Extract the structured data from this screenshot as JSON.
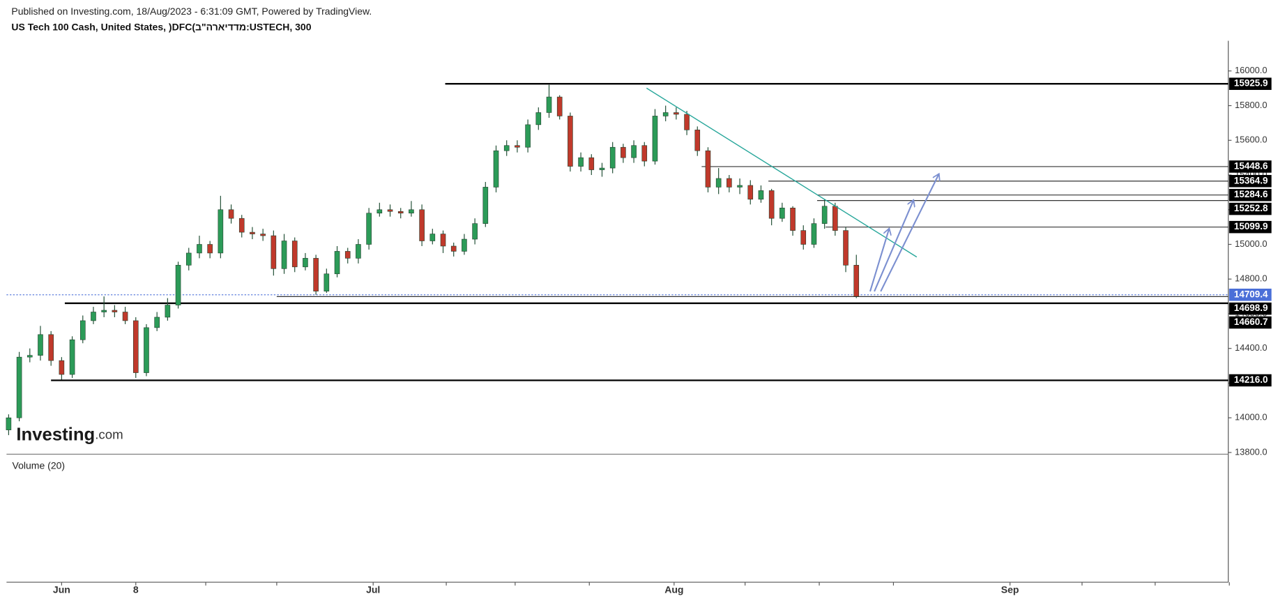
{
  "chart_data": {
    "type": "candlestick",
    "published": "Published on Investing.com, 18/Aug/2023 - 6:31:09 GMT, Powered by TradingView.",
    "title": "US Tech 100 Cash, United States, )DFC(מדדיארה\"ב:USTECH, 300",
    "volume_label": "Volume (20)",
    "logo": {
      "main": "Investing",
      "suffix": ".com"
    },
    "up_color": "#2c9b58",
    "down_color": "#c0392b",
    "x": [
      0,
      1,
      2,
      3,
      4,
      5,
      6,
      7,
      8,
      9,
      10,
      11,
      12,
      13,
      14,
      15,
      16,
      17,
      18,
      19,
      20,
      21,
      22,
      23,
      24,
      25,
      26,
      27,
      28,
      29,
      30,
      31,
      32,
      33,
      34,
      35,
      36,
      37,
      38,
      39,
      40,
      41,
      42,
      43,
      44,
      45,
      46,
      47,
      48,
      49,
      50,
      51,
      52,
      53,
      54,
      55,
      56,
      57,
      58,
      59,
      60,
      61,
      62,
      63,
      64,
      65,
      66,
      67,
      68,
      69,
      70,
      71,
      72,
      73,
      74,
      75,
      76,
      77,
      78,
      79,
      80
    ],
    "open": [
      13930,
      14000,
      14350,
      14360,
      14480,
      14330,
      14250,
      14450,
      14560,
      14610,
      14620,
      14610,
      14560,
      14260,
      14520,
      14580,
      14650,
      14880,
      14950,
      15000,
      14950,
      15200,
      15150,
      15070,
      15060,
      15050,
      14860,
      15020,
      14870,
      14920,
      14730,
      14830,
      14960,
      14920,
      15000,
      15180,
      15200,
      15190,
      15180,
      15200,
      15020,
      15060,
      14990,
      14960,
      15030,
      15120,
      15330,
      15540,
      15570,
      15560,
      15690,
      15760,
      15850,
      15740,
      15450,
      15500,
      15430,
      15440,
      15560,
      15500,
      15570,
      15480,
      15740,
      15760,
      15750,
      15660,
      15540,
      15330,
      15380,
      15330,
      15340,
      15260,
      15310,
      15150,
      15210,
      15080,
      15000,
      15120,
      15220,
      15080,
      14880
    ],
    "high": [
      14020,
      14380,
      14400,
      14530,
      14500,
      14350,
      14470,
      14590,
      14640,
      14700,
      14650,
      14640,
      14580,
      14540,
      14610,
      14690,
      14900,
      14980,
      15050,
      15020,
      15280,
      15230,
      15170,
      15100,
      15090,
      15080,
      15060,
      15040,
      14950,
      14940,
      14860,
      14990,
      14980,
      15030,
      15210,
      15240,
      15230,
      15210,
      15250,
      15230,
      15090,
      15080,
      15010,
      15060,
      15150,
      15360,
      15570,
      15600,
      15600,
      15720,
      15790,
      15920,
      15860,
      15760,
      15530,
      15520,
      15470,
      15590,
      15580,
      15600,
      15590,
      15780,
      15800,
      15790,
      15770,
      15680,
      15560,
      15440,
      15400,
      15380,
      15370,
      15340,
      15320,
      15240,
      15220,
      15110,
      15150,
      15260,
      15240,
      15100,
      14940
    ],
    "low": [
      13900,
      13980,
      14320,
      14330,
      14300,
      14220,
      14230,
      14430,
      14540,
      14580,
      14580,
      14540,
      14230,
      14240,
      14500,
      14560,
      14630,
      14850,
      14920,
      14920,
      14920,
      15120,
      15040,
      15030,
      15020,
      14820,
      14830,
      14840,
      14850,
      14710,
      14720,
      14810,
      14890,
      14890,
      14970,
      15160,
      15160,
      15150,
      15160,
      14990,
      15000,
      14950,
      14930,
      14940,
      15000,
      15100,
      15300,
      15510,
      15530,
      15530,
      15660,
      15730,
      15720,
      15420,
      15420,
      15400,
      15390,
      15410,
      15470,
      15470,
      15450,
      15460,
      15710,
      15720,
      15630,
      15510,
      15300,
      15290,
      15300,
      15290,
      15230,
      15240,
      15110,
      15130,
      15050,
      14970,
      14980,
      15090,
      15050,
      14840,
      14690
    ],
    "close": [
      14000,
      14350,
      14360,
      14480,
      14330,
      14250,
      14450,
      14560,
      14610,
      14620,
      14610,
      14560,
      14260,
      14520,
      14580,
      14650,
      14880,
      14950,
      15000,
      14950,
      15200,
      15150,
      15070,
      15060,
      15050,
      14860,
      15020,
      14870,
      14920,
      14730,
      14830,
      14960,
      14920,
      15000,
      15180,
      15200,
      15190,
      15180,
      15200,
      15020,
      15060,
      14990,
      14960,
      15030,
      15120,
      15330,
      15540,
      15570,
      15560,
      15690,
      15760,
      15850,
      15740,
      15450,
      15500,
      15430,
      15440,
      15560,
      15500,
      15570,
      15480,
      15740,
      15760,
      15750,
      15660,
      15540,
      15330,
      15380,
      15330,
      15340,
      15260,
      15310,
      15150,
      15210,
      15080,
      15000,
      15120,
      15220,
      15080,
      14880,
      14700
    ],
    "xlim": [
      -0.2,
      115.1
    ],
    "xticks": [
      {
        "value": 5.0,
        "label": "Jun"
      },
      {
        "value": 12.0,
        "label": "8"
      },
      {
        "value": 34.4,
        "label": "Jul"
      },
      {
        "value": 62.8,
        "label": "Aug"
      },
      {
        "value": 94.5,
        "label": "Sep"
      }
    ],
    "xminor": [
      18.6,
      25.3,
      41.3,
      47.8,
      54.8,
      69.5,
      76.5,
      83.5,
      101.3,
      108.2,
      115.2
    ],
    "ylim": [
      13790,
      16174
    ],
    "yticks": [
      {
        "value": 13800,
        "label": "13800.0"
      },
      {
        "value": 14000,
        "label": "14000.0"
      },
      {
        "value": 14200,
        "label": "14200.0"
      },
      {
        "value": 14400,
        "label": "14400.0"
      },
      {
        "value": 14600,
        "label": "14600.0"
      },
      {
        "value": 14800,
        "label": "14800.0"
      },
      {
        "value": 15000,
        "label": "15000.0"
      },
      {
        "value": 15200,
        "label": "15200.0"
      },
      {
        "value": 15400,
        "label": "15400.0"
      },
      {
        "value": 15600,
        "label": "15600.0"
      },
      {
        "value": 15800,
        "label": "15800.0"
      },
      {
        "value": 16000,
        "label": "16000.0"
      }
    ],
    "levels": [
      {
        "value": 15925.9,
        "start": 41.2,
        "width": 2,
        "color": "#000000"
      },
      {
        "value": 15448.6,
        "start": 65.4,
        "width": 1,
        "color": "#333333"
      },
      {
        "value": 15364.9,
        "start": 71.7,
        "width": 1,
        "color": "#333333"
      },
      {
        "value": 15284.6,
        "start": 76.3,
        "width": 1,
        "color": "#333333"
      },
      {
        "value": 15252.8,
        "start": 76.3,
        "width": 1,
        "color": "#333333"
      },
      {
        "value": 15099.9,
        "start": 77.1,
        "width": 1,
        "color": "#333333"
      },
      {
        "value": 14709.4,
        "start": -0.2,
        "width": 1,
        "color": "#4a6fd8",
        "dotted": true
      },
      {
        "value": 14698.9,
        "start": 25.3,
        "width": 1,
        "color": "#333333"
      },
      {
        "value": 14660.7,
        "start": 5.3,
        "width": 2,
        "color": "#000000"
      },
      {
        "value": 14216.0,
        "label": "14216.0",
        "start": 4.0,
        "width": 2,
        "color": "#000000"
      }
    ],
    "trendline": {
      "x": [
        60.2,
        85.7
      ],
      "y": [
        15901,
        14927
      ],
      "color": "#26a69a"
    },
    "arrow_color": "#7b8fd0",
    "arrows": [
      {
        "x": [
          81.3,
          83.1
        ],
        "y": [
          14729,
          15092
        ]
      },
      {
        "x": [
          81.7,
          85.4
        ],
        "y": [
          14729,
          15256
        ]
      },
      {
        "x": [
          82.3,
          87.8
        ],
        "y": [
          14729,
          15407
        ]
      }
    ]
  }
}
